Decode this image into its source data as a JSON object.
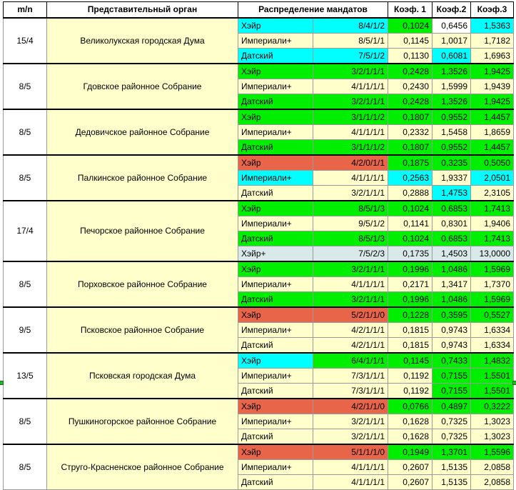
{
  "header": {
    "mn": "m/n",
    "organ": "Представительный орган",
    "distribution": "Распределение мандатов",
    "k1": "Коэф. 1",
    "k2": "Коэф.2",
    "k3": "Коэф.3"
  },
  "colors": {
    "green": "#00ee00",
    "cyan": "#00ffff",
    "red": "#e8654a",
    "light_gray": "#d9e8e8",
    "light_yellow": "#ffffcc",
    "white": "#ffffff"
  },
  "groups": [
    {
      "mn": "15/4",
      "organ": "Великолукская городская Дума",
      "rows": [
        {
          "method": "Хэйр",
          "dist": "8/4/1/2",
          "k1": "0,1024",
          "k2": "0,6456",
          "k3": "1,5363",
          "c": [
            "cyan",
            "cyan",
            "green",
            "white",
            "cyan"
          ]
        },
        {
          "method": "Империали+",
          "dist": "8/5/1/1",
          "k1": "0,1145",
          "k2": "1,0017",
          "k3": "1,7182",
          "c": [
            "yellow",
            "yellow",
            "yellow",
            "yellow",
            "yellow"
          ]
        },
        {
          "method": "Датский",
          "dist": "7/5/1/2",
          "k1": "0,1130",
          "k2": "0,6081",
          "k3": "1,6963",
          "c": [
            "cyan",
            "cyan",
            "yellow",
            "cyan",
            "yellow"
          ]
        }
      ]
    },
    {
      "mn": "8/5",
      "organ": "Гдовское районное Собрание",
      "rows": [
        {
          "method": "Хэйр",
          "dist": "3/2/1/1/1",
          "k1": "0,2428",
          "k2": "1,3526",
          "k3": "1,9425",
          "c": [
            "green",
            "green",
            "green",
            "green",
            "green"
          ]
        },
        {
          "method": "Империали+",
          "dist": "4/1/1/1/1",
          "k1": "0,2430",
          "k2": "1,5999",
          "k3": "1,9439",
          "c": [
            "yellow",
            "yellow",
            "yellow",
            "yellow",
            "yellow"
          ]
        },
        {
          "method": "Датский",
          "dist": "3/2/1/1/1",
          "k1": "0,2428",
          "k2": "1,3526",
          "k3": "1,9425",
          "c": [
            "green",
            "green",
            "green",
            "green",
            "green"
          ]
        }
      ]
    },
    {
      "mn": "8/5",
      "organ": "Дедовичское районное Собрание",
      "rows": [
        {
          "method": "Хэйр",
          "dist": "3/1/1/1/2",
          "k1": "0,1807",
          "k2": "0,9552",
          "k3": "1,4457",
          "c": [
            "green",
            "green",
            "green",
            "green",
            "green"
          ]
        },
        {
          "method": "Империали+",
          "dist": "4/1/1/1/1",
          "k1": "0,2332",
          "k2": "1,5458",
          "k3": "1,8659",
          "c": [
            "yellow",
            "yellow",
            "yellow",
            "yellow",
            "yellow"
          ]
        },
        {
          "method": "Датский",
          "dist": "3/1/1/1/2",
          "k1": "0,1807",
          "k2": "0,9552",
          "k3": "1,4457",
          "c": [
            "green",
            "green",
            "green",
            "green",
            "green"
          ]
        }
      ]
    },
    {
      "mn": "8/5",
      "organ": "Палкинское районное Собрание",
      "rows": [
        {
          "method": "Хэйр",
          "dist": "4/2/0/1/1",
          "k1": "0,1875",
          "k2": "0,3235",
          "k3": "0,5050",
          "c": [
            "red",
            "red",
            "green",
            "green",
            "green"
          ]
        },
        {
          "method": "Империали+",
          "dist": "4/1/1/1/1",
          "k1": "0,2563",
          "k2": "1,9337",
          "k3": "2,0501",
          "c": [
            "cyan",
            "yellow",
            "cyan",
            "yellow",
            "cyan"
          ]
        },
        {
          "method": "Датский",
          "dist": "3/2/1/1/1",
          "k1": "0,2888",
          "k2": "1,4753",
          "k3": "2,3105",
          "c": [
            "yellow",
            "yellow",
            "yellow",
            "cyan",
            "yellow"
          ]
        }
      ]
    },
    {
      "mn": "17/4",
      "organ": "Печорское районное Собрание",
      "rows": [
        {
          "method": "Хэйр",
          "dist": "8/5/1/3",
          "k1": "0,1024",
          "k2": "0,6853",
          "k3": "1,7413",
          "c": [
            "green",
            "green",
            "green",
            "green",
            "green"
          ]
        },
        {
          "method": "Империали+",
          "dist": "9/5/1/2",
          "k1": "0,1141",
          "k2": "0,8301",
          "k3": "1,9406",
          "c": [
            "yellow",
            "yellow",
            "yellow",
            "yellow",
            "yellow"
          ]
        },
        {
          "method": "Датский",
          "dist": "8/5/1/3",
          "k1": "0,1024",
          "k2": "0,6853",
          "k3": "1,7413",
          "c": [
            "green",
            "green",
            "green",
            "green",
            "green"
          ]
        },
        {
          "method": "Хэйр+",
          "dist": "7/5/2/3",
          "k1": "0,1735",
          "k2": "1,4503",
          "k3": "13,0000",
          "c": [
            "gray",
            "gray",
            "gray",
            "gray",
            "gray"
          ]
        }
      ]
    },
    {
      "mn": "8/5",
      "organ": "Порховское районное Собрание",
      "rows": [
        {
          "method": "Хэйр",
          "dist": "3/2/1/1/1",
          "k1": "0,1996",
          "k2": "1,0486",
          "k3": "1,5969",
          "c": [
            "green",
            "green",
            "green",
            "green",
            "green"
          ]
        },
        {
          "method": "Империали+",
          "dist": "4/1/1/1/1",
          "k1": "0,2171",
          "k2": "1,3417",
          "k3": "1,7370",
          "c": [
            "yellow",
            "yellow",
            "yellow",
            "yellow",
            "yellow"
          ]
        },
        {
          "method": "Датский",
          "dist": "3/2/1/1/1",
          "k1": "0,1996",
          "k2": "1,0486",
          "k3": "1,5969",
          "c": [
            "green",
            "green",
            "green",
            "green",
            "green"
          ]
        }
      ]
    },
    {
      "mn": "9/5",
      "organ": "Псковское районное Собрание",
      "rows": [
        {
          "method": "Хэйр",
          "dist": "5/2/1/1/0",
          "k1": "0,1228",
          "k2": "0,3595",
          "k3": "0,5527",
          "c": [
            "red",
            "red",
            "green",
            "green",
            "green"
          ]
        },
        {
          "method": "Империали+",
          "dist": "4/2/1/1/1",
          "k1": "0,1815",
          "k2": "0,9743",
          "k3": "1,6334",
          "c": [
            "yellow",
            "yellow",
            "yellow",
            "yellow",
            "yellow"
          ]
        },
        {
          "method": "Датский",
          "dist": "4/2/1/1/1",
          "k1": "0,1815",
          "k2": "0,9743",
          "k3": "1,6334",
          "c": [
            "yellow",
            "yellow",
            "yellow",
            "yellow",
            "yellow"
          ]
        }
      ]
    },
    {
      "mn": "13/5",
      "organ": "Псковская городская Дума",
      "rows": [
        {
          "method": "Хэйр",
          "dist": "6/4/1/1/1",
          "k1": "0,1145",
          "k2": "0,7433",
          "k3": "1,4832",
          "c": [
            "cyan",
            "green",
            "green",
            "green",
            "green"
          ]
        },
        {
          "method": "Империали+",
          "dist": "7/3/1/1/1",
          "k1": "0,1192",
          "k2": "0,7155",
          "k3": "1,5501",
          "c": [
            "yellow",
            "yellow",
            "yellow",
            "green",
            "green"
          ]
        },
        {
          "method": "Датский",
          "dist": "7/3/1/1/1",
          "k1": "0,1192",
          "k2": "0,7155",
          "k3": "1,5501",
          "c": [
            "yellow",
            "yellow",
            "yellow",
            "green",
            "green"
          ]
        }
      ]
    },
    {
      "mn": "8/5",
      "organ": "Пушкиногорское районное Собрание",
      "rows": [
        {
          "method": "Хэйр",
          "dist": "4/2/1/1/0",
          "k1": "0,0766",
          "k2": "0,4897",
          "k3": "0,3222",
          "c": [
            "red",
            "red",
            "green",
            "green",
            "green"
          ]
        },
        {
          "method": "Империали+",
          "dist": "3/2/1/1/1",
          "k1": "0,1628",
          "k2": "0,7325",
          "k3": "1,3023",
          "c": [
            "yellow",
            "yellow",
            "yellow",
            "yellow",
            "yellow"
          ]
        },
        {
          "method": "Датский",
          "dist": "3/2/1/1/1",
          "k1": "0,1628",
          "k2": "0,7325",
          "k3": "1,3023",
          "c": [
            "yellow",
            "yellow",
            "yellow",
            "yellow",
            "yellow"
          ]
        }
      ]
    },
    {
      "mn": "8/5",
      "organ": "Струго-Красненское районное Собрание",
      "rows": [
        {
          "method": "Хэйр",
          "dist": "5/1/1/1/0",
          "k1": "0,1949",
          "k2": "1,3701",
          "k3": "1,5596",
          "c": [
            "red",
            "red",
            "green",
            "green",
            "green"
          ]
        },
        {
          "method": "Империали+",
          "dist": "4/1/1/1/1",
          "k1": "0,2607",
          "k2": "1,5135",
          "k3": "2,0858",
          "c": [
            "yellow",
            "yellow",
            "yellow",
            "yellow",
            "yellow"
          ]
        },
        {
          "method": "Датский",
          "dist": "4/1/1/1/1",
          "k1": "0,2607",
          "k2": "1,5135",
          "k3": "2,0858",
          "c": [
            "yellow",
            "yellow",
            "yellow",
            "yellow",
            "yellow"
          ]
        }
      ]
    }
  ]
}
